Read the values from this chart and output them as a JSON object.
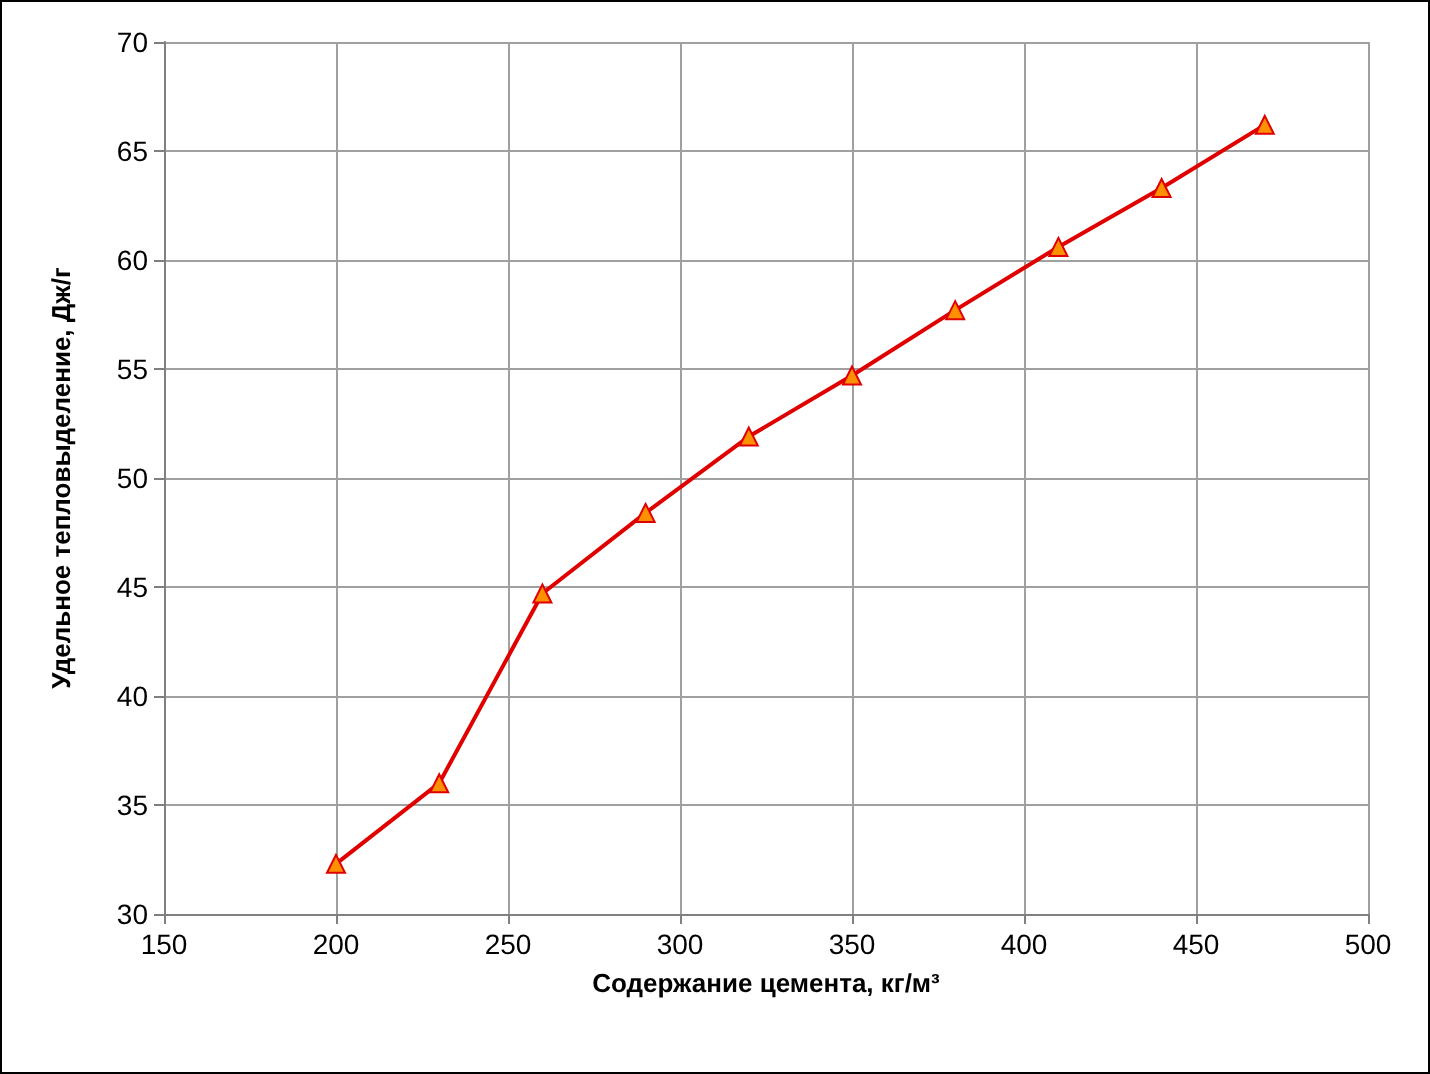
{
  "chart_data": {
    "type": "line",
    "xlabel": "Содержание цемента, кг/м³",
    "ylabel": "Удельное тепловыделение, Дж/г",
    "x": [
      200,
      230,
      260,
      290,
      320,
      350,
      380,
      410,
      440,
      470
    ],
    "series": [
      {
        "color": "#e00000",
        "values": [
          32.3,
          36.0,
          44.7,
          48.4,
          51.9,
          54.7,
          57.7,
          60.6,
          63.3,
          66.2
        ]
      }
    ],
    "xlim": [
      150,
      500
    ],
    "xticks": [
      150,
      200,
      250,
      300,
      350,
      400,
      450,
      500
    ],
    "ylim": [
      30,
      70
    ],
    "yticks": [
      30,
      35,
      40,
      45,
      50,
      55,
      60,
      65,
      70
    ],
    "grid": true,
    "marker": "triangle",
    "line_style": "solid"
  }
}
